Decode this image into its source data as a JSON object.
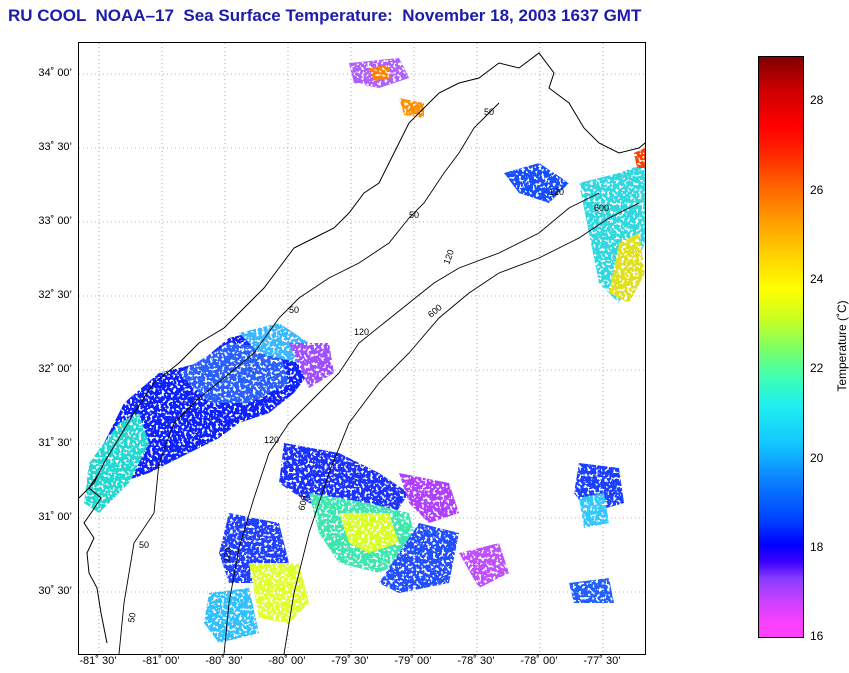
{
  "title": "RU COOL  NOAA–17  Sea Surface Temperature:  November 18, 2003 1637 GMT",
  "map": {
    "lat_labels": [
      "34˚ 00’",
      "33˚ 30’",
      "33˚ 00’",
      "32˚ 30’",
      "32˚ 00’",
      "31˚ 30’",
      "31˚ 00’",
      "30˚ 30’"
    ],
    "lon_labels": [
      "-81˚ 30’",
      "-81˚ 00’",
      "-80˚ 30’",
      "-80˚ 00’",
      "-79˚ 30’",
      "-79˚ 00’",
      "-78˚ 30’",
      "-78˚ 00’",
      "-77˚ 30’"
    ],
    "contour_labels": [
      "50",
      "50",
      "50",
      "50",
      "50",
      "120",
      "120",
      "120",
      "120",
      "120",
      "600",
      "600",
      "600"
    ],
    "grid": true
  },
  "colorbar": {
    "title": "Temperature (˚C)",
    "tick_labels": [
      "28",
      "26",
      "24",
      "22",
      "20",
      "18",
      "16"
    ],
    "range": [
      16,
      29
    ]
  },
  "colors": {
    "title": "#1c1caa",
    "contour": "#000000",
    "coastline": "#000000"
  }
}
